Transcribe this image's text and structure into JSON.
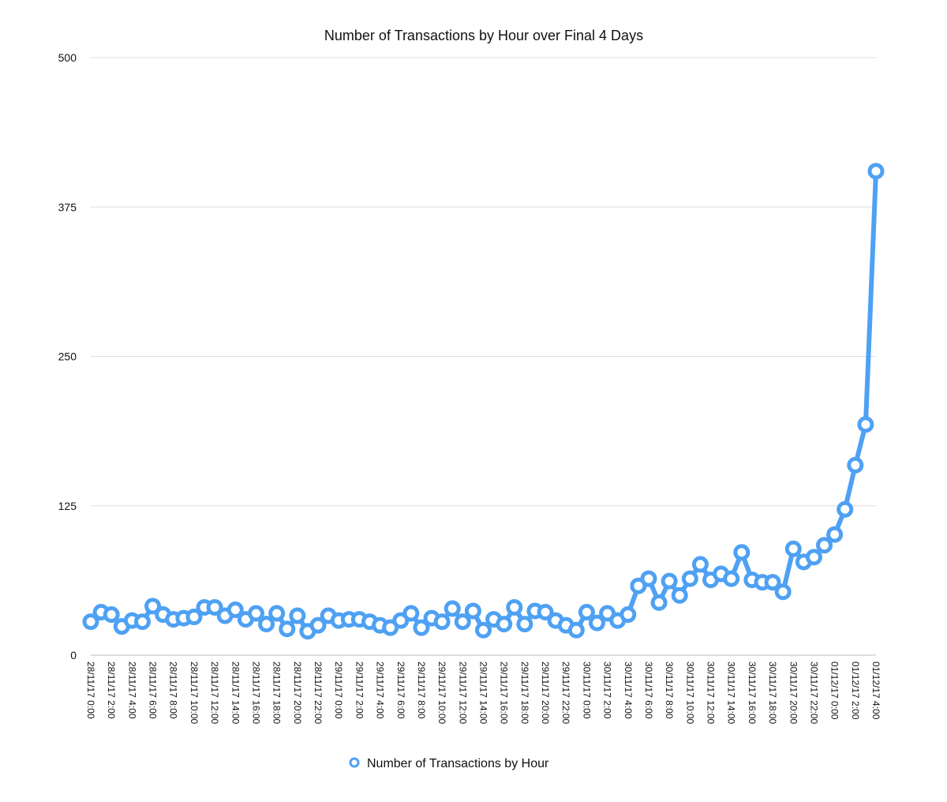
{
  "chart_data": {
    "type": "line",
    "title": "Number of Transactions by Hour over Final 4 Days",
    "xlabel": "",
    "ylabel": "",
    "ylim": [
      0,
      500
    ],
    "yticks": [
      "0",
      "125",
      "250",
      "375",
      "500"
    ],
    "grid": true,
    "legend": "bottom-center",
    "x": [
      "28/11/17 0:00",
      "28/11/17 1:00",
      "28/11/17 2:00",
      "28/11/17 3:00",
      "28/11/17 4:00",
      "28/11/17 5:00",
      "28/11/17 6:00",
      "28/11/17 7:00",
      "28/11/17 8:00",
      "28/11/17 9:00",
      "28/11/17 10:00",
      "28/11/17 11:00",
      "28/11/17 12:00",
      "28/11/17 13:00",
      "28/11/17 14:00",
      "28/11/17 15:00",
      "28/11/17 16:00",
      "28/11/17 17:00",
      "28/11/17 18:00",
      "28/11/17 19:00",
      "28/11/17 20:00",
      "28/11/17 21:00",
      "28/11/17 22:00",
      "28/11/17 23:00",
      "29/11/17 0:00",
      "29/11/17 1:00",
      "29/11/17 2:00",
      "29/11/17 3:00",
      "29/11/17 4:00",
      "29/11/17 5:00",
      "29/11/17 6:00",
      "29/11/17 7:00",
      "29/11/17 8:00",
      "29/11/17 9:00",
      "29/11/17 10:00",
      "29/11/17 11:00",
      "29/11/17 12:00",
      "29/11/17 13:00",
      "29/11/17 14:00",
      "29/11/17 15:00",
      "29/11/17 16:00",
      "29/11/17 17:00",
      "29/11/17 18:00",
      "29/11/17 19:00",
      "29/11/17 20:00",
      "29/11/17 21:00",
      "29/11/17 22:00",
      "29/11/17 23:00",
      "30/11/17 0:00",
      "30/11/17 1:00",
      "30/11/17 2:00",
      "30/11/17 3:00",
      "30/11/17 4:00",
      "30/11/17 5:00",
      "30/11/17 6:00",
      "30/11/17 7:00",
      "30/11/17 8:00",
      "30/11/17 9:00",
      "30/11/17 10:00",
      "30/11/17 11:00",
      "30/11/17 12:00",
      "30/11/17 13:00",
      "30/11/17 14:00",
      "30/11/17 15:00",
      "30/11/17 16:00",
      "30/11/17 17:00",
      "30/11/17 18:00",
      "30/11/17 19:00",
      "30/11/17 20:00",
      "30/11/17 21:00",
      "30/11/17 22:00",
      "30/11/17 23:00",
      "01/12/17 0:00",
      "01/12/17 1:00",
      "01/12/17 2:00",
      "01/12/17 3:00",
      "01/12/17 4:00"
    ],
    "xtick_labels": [
      "28/11/17 0:00",
      "28/11/17 2:00",
      "28/11/17 4:00",
      "28/11/17 6:00",
      "28/11/17 8:00",
      "28/11/17 10:00",
      "28/11/17 12:00",
      "28/11/17 14:00",
      "28/11/17 16:00",
      "28/11/17 18:00",
      "28/11/17 20:00",
      "28/11/17 22:00",
      "29/11/17 0:00",
      "29/11/17 2:00",
      "29/11/17 4:00",
      "29/11/17 6:00",
      "29/11/17 8:00",
      "29/11/17 10:00",
      "29/11/17 12:00",
      "29/11/17 14:00",
      "29/11/17 16:00",
      "29/11/17 18:00",
      "29/11/17 20:00",
      "29/11/17 22:00",
      "30/11/17 0:00",
      "30/11/17 2:00",
      "30/11/17 4:00",
      "30/11/17 6:00",
      "30/11/17 8:00",
      "30/11/17 10:00",
      "30/11/17 12:00",
      "30/11/17 14:00",
      "30/11/17 16:00",
      "30/11/17 18:00",
      "30/11/17 20:00",
      "30/11/17 22:00",
      "01/12/17 0:00",
      "01/12/17 2:00",
      "01/12/17 4:00"
    ],
    "series": [
      {
        "name": "Number of Transactions by Hour",
        "color": "#4ea1f3",
        "values": [
          28,
          36,
          34,
          24,
          29,
          28,
          41,
          34,
          30,
          31,
          32,
          40,
          40,
          33,
          38,
          30,
          35,
          26,
          35,
          22,
          33,
          20,
          25,
          33,
          29,
          30,
          30,
          28,
          25,
          23,
          29,
          35,
          23,
          31,
          28,
          39,
          28,
          37,
          21,
          30,
          26,
          40,
          26,
          37,
          36,
          29,
          25,
          21,
          36,
          27,
          35,
          29,
          34,
          58,
          64,
          44,
          62,
          50,
          64,
          76,
          63,
          68,
          64,
          86,
          63,
          61,
          61,
          53,
          89,
          78,
          82,
          92,
          101,
          122,
          159,
          193,
          405
        ]
      }
    ]
  }
}
